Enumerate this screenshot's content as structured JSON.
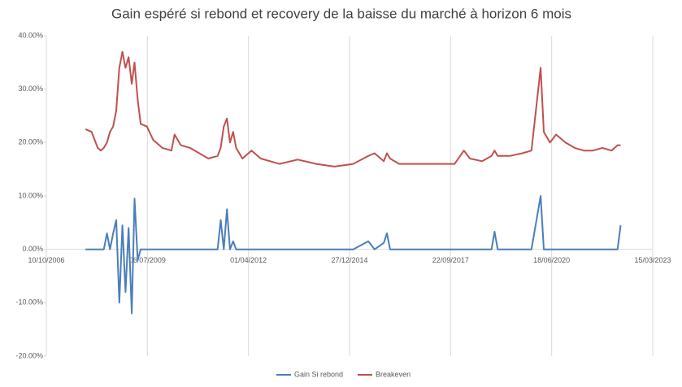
{
  "chart_data": {
    "type": "line",
    "title": "Gain espéré si rebond et recovery de la baisse du marché à horizon 6 mois",
    "x": [
      "01/11/2007",
      "01/01/2008",
      "01/03/2008",
      "01/04/2008",
      "01/05/2008",
      "01/06/2008",
      "01/07/2008",
      "01/08/2008",
      "01/09/2008",
      "01/10/2008",
      "01/11/2008",
      "01/12/2008",
      "01/01/2009",
      "01/02/2009",
      "01/03/2009",
      "01/04/2009",
      "01/05/2009",
      "01/07/2009",
      "01/09/2009",
      "01/12/2009",
      "01/03/2010",
      "01/04/2010",
      "01/06/2010",
      "01/09/2010",
      "01/12/2010",
      "01/03/2011",
      "01/06/2011",
      "01/07/2011",
      "01/08/2011",
      "01/09/2011",
      "01/10/2011",
      "01/11/2011",
      "01/12/2011",
      "01/02/2012",
      "01/05/2012",
      "01/08/2012",
      "01/02/2013",
      "01/08/2013",
      "01/02/2014",
      "01/08/2014",
      "01/02/2015",
      "01/07/2015",
      "01/09/2015",
      "01/12/2015",
      "01/01/2016",
      "01/02/2016",
      "01/05/2016",
      "01/11/2016",
      "01/05/2017",
      "01/11/2017",
      "01/02/2018",
      "01/04/2018",
      "01/08/2018",
      "01/11/2018",
      "01/12/2018",
      "01/01/2019",
      "01/05/2019",
      "01/09/2019",
      "01/12/2019",
      "01/03/2020",
      "01/04/2020",
      "01/06/2020",
      "01/08/2020",
      "01/11/2020",
      "01/02/2021",
      "01/05/2021",
      "01/08/2021",
      "01/11/2021",
      "01/02/2022",
      "01/04/2022",
      "01/05/2022"
    ],
    "series": [
      {
        "name": "Gain Si rebond",
        "color": "#4a7ebb",
        "values": [
          0,
          0,
          0,
          0,
          0,
          3,
          0,
          3,
          5.5,
          -10,
          4.5,
          -8,
          4,
          -12,
          9.5,
          -2,
          0,
          0,
          0,
          0,
          0,
          0,
          0,
          0,
          0,
          0,
          0,
          5.5,
          0,
          7.5,
          0,
          1.5,
          0,
          0,
          0,
          0,
          0,
          0,
          0,
          0,
          0,
          1.5,
          0,
          1.2,
          3,
          0,
          0,
          0,
          0,
          0,
          0,
          0,
          0,
          0,
          3.3,
          0,
          0,
          0,
          0,
          10,
          0,
          0,
          0,
          0,
          0,
          0,
          0,
          0,
          0,
          0,
          4.5
        ]
      },
      {
        "name": "Breakeven",
        "color": "#c0504d",
        "values": [
          22.5,
          22,
          19,
          18.5,
          19,
          20,
          22,
          23,
          26,
          34,
          37,
          34,
          36,
          31,
          35,
          28,
          23.5,
          23,
          20.5,
          19,
          18.5,
          21.5,
          19.5,
          19,
          18,
          17,
          17.5,
          19,
          23,
          24.5,
          20,
          22,
          19,
          17,
          18.5,
          17,
          16,
          16.8,
          16,
          15.5,
          16,
          17.5,
          18,
          16.5,
          18,
          17,
          16,
          16,
          16,
          16,
          18.5,
          17,
          16.5,
          17.5,
          18.5,
          17.5,
          17.5,
          18,
          18.5,
          34,
          22,
          20,
          21.5,
          20,
          19,
          18.5,
          18.5,
          19,
          18.5,
          19.5,
          19.5
        ]
      }
    ],
    "xlim": [
      "10/10/2006",
      "15/03/2023"
    ],
    "xticks": [
      "10/10/2006",
      "06/07/2009",
      "01/04/2012",
      "27/12/2014",
      "22/09/2017",
      "18/06/2020",
      "15/03/2023"
    ],
    "ylim": [
      -20,
      40
    ],
    "yticks": [
      {
        "value": -20,
        "label": "-20.00%"
      },
      {
        "value": -10,
        "label": "-10.00%"
      },
      {
        "value": 0,
        "label": "0.00%"
      },
      {
        "value": 10,
        "label": "10.00%"
      },
      {
        "value": 20,
        "label": "20.00%"
      },
      {
        "value": 30,
        "label": "30.00%"
      },
      {
        "value": 40,
        "label": "40.00%"
      }
    ],
    "grid": "x",
    "legend": "bottom"
  }
}
